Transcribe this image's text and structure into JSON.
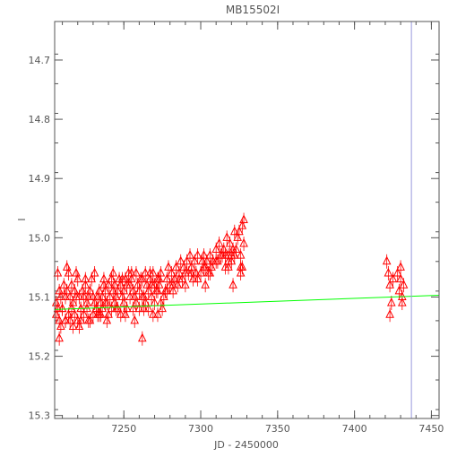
{
  "chart_data": {
    "type": "scatter",
    "title": "MB15502I",
    "xlabel": "JD - 2450000",
    "ylabel": "I",
    "xlim": [
      7205,
      7455
    ],
    "ylim": [
      15.305,
      14.635
    ],
    "y_axis_inverted": true,
    "grid": false,
    "legend": "none",
    "x_ticks": [
      7250,
      7300,
      7350,
      7400,
      7450
    ],
    "x_tick_labels": [
      "7250",
      "7300",
      "7350",
      "7400",
      "7450"
    ],
    "y_ticks": [
      14.7,
      14.8,
      14.9,
      15.0,
      15.1,
      15.2,
      15.3
    ],
    "y_tick_labels": [
      "14.7",
      "14.8",
      "14.9",
      "15.0",
      "15.1",
      "15.2",
      "15.3"
    ],
    "colors": {
      "points": "#ff0000",
      "model": "#00ff00",
      "vline": "#9999dd",
      "axes": "#555555"
    },
    "series": [
      {
        "marker": "triangle-open",
        "x": [
          7206,
          7207,
          7208,
          7209,
          7210,
          7211,
          7212,
          7213,
          7214,
          7215,
          7216,
          7217,
          7218,
          7219,
          7220,
          7221,
          7222,
          7223,
          7224,
          7225,
          7226,
          7227,
          7228,
          7229,
          7230,
          7231,
          7232,
          7233,
          7234,
          7235,
          7236,
          7237,
          7238,
          7239,
          7240,
          7241,
          7242,
          7243,
          7244,
          7245,
          7246,
          7247,
          7248,
          7249,
          7250,
          7251,
          7252,
          7253,
          7254,
          7255,
          7256,
          7257,
          7258,
          7259,
          7260,
          7262,
          7263,
          7264,
          7265,
          7266,
          7267,
          7268,
          7269,
          7270,
          7271,
          7272,
          7273,
          7274,
          7276,
          7277,
          7278,
          7279,
          7280,
          7281,
          7282,
          7283,
          7284,
          7285,
          7286,
          7287,
          7288,
          7289,
          7290,
          7291,
          7292,
          7293,
          7294,
          7295,
          7296,
          7297,
          7298,
          7300,
          7301,
          7302,
          7303,
          7304,
          7305,
          7306,
          7307,
          7308,
          7310,
          7311,
          7312,
          7313,
          7315,
          7316,
          7317,
          7318,
          7319,
          7320,
          7321,
          7322,
          7323,
          7324,
          7325,
          7326,
          7327,
          7328,
          7206,
          7208,
          7210,
          7212,
          7214,
          7216,
          7218,
          7220,
          7222,
          7224,
          7226,
          7228,
          7230,
          7232,
          7234,
          7236,
          7238,
          7240,
          7242,
          7244,
          7246,
          7248,
          7250,
          7252,
          7254,
          7256,
          7258,
          7260,
          7262,
          7264,
          7266,
          7268,
          7270,
          7272,
          7274,
          7278,
          7282,
          7286,
          7290,
          7294,
          7298,
          7302,
          7306,
          7310,
          7314,
          7318,
          7322,
          7326,
          7207,
          7213,
          7219,
          7225,
          7231,
          7237,
          7243,
          7249,
          7255,
          7261,
          7267,
          7273,
          7209,
          7215,
          7221,
          7227,
          7233,
          7239,
          7245,
          7251,
          7257,
          7263,
          7269,
          7275,
          7421,
          7422,
          7423,
          7424,
          7425,
          7428,
          7429,
          7430,
          7431,
          7432
        ],
        "y": [
          15.11,
          15.12,
          15.09,
          15.1,
          15.12,
          15.08,
          15.1,
          15.09,
          15.06,
          15.1,
          15.08,
          15.11,
          15.09,
          15.1,
          15.07,
          15.1,
          15.12,
          15.09,
          15.1,
          15.08,
          15.11,
          15.1,
          15.09,
          15.07,
          15.1,
          15.11,
          15.12,
          15.1,
          15.09,
          15.11,
          15.1,
          15.08,
          15.09,
          15.11,
          15.08,
          15.1,
          15.07,
          15.09,
          15.08,
          15.1,
          15.09,
          15.07,
          15.08,
          15.1,
          15.09,
          15.07,
          15.08,
          15.06,
          15.08,
          15.07,
          15.09,
          15.1,
          15.06,
          15.08,
          15.09,
          15.07,
          15.1,
          15.06,
          15.08,
          15.09,
          15.07,
          15.08,
          15.06,
          15.08,
          15.09,
          15.07,
          15.08,
          15.06,
          15.1,
          15.09,
          15.07,
          15.05,
          15.08,
          15.06,
          15.09,
          15.07,
          15.05,
          15.08,
          15.06,
          15.04,
          15.07,
          15.05,
          15.06,
          15.04,
          15.06,
          15.03,
          15.05,
          15.07,
          15.04,
          15.06,
          15.03,
          15.06,
          15.04,
          15.03,
          15.05,
          15.04,
          15.06,
          15.03,
          15.05,
          15.04,
          15.02,
          15.04,
          15.01,
          15.03,
          15.02,
          15.05,
          15.0,
          15.03,
          15.01,
          15.04,
          15.02,
          14.99,
          15.02,
          15.0,
          14.99,
          15.03,
          14.98,
          15.01,
          15.13,
          15.14,
          15.12,
          15.14,
          15.13,
          15.12,
          15.13,
          15.14,
          15.12,
          15.13,
          15.12,
          15.14,
          15.13,
          15.12,
          15.13,
          15.12,
          15.11,
          15.13,
          15.12,
          15.11,
          15.12,
          15.13,
          15.11,
          15.12,
          15.1,
          15.12,
          15.11,
          15.12,
          15.1,
          15.11,
          15.12,
          15.1,
          15.11,
          15.09,
          15.11,
          15.09,
          15.08,
          15.07,
          15.08,
          15.06,
          15.07,
          15.05,
          15.06,
          15.04,
          15.03,
          15.04,
          15.03,
          15.05,
          15.06,
          15.05,
          15.06,
          15.07,
          15.06,
          15.07,
          15.06,
          15.07,
          15.06,
          15.07,
          15.06,
          15.07,
          15.15,
          15.14,
          15.15,
          15.14,
          15.13,
          15.14,
          15.12,
          15.13,
          15.14,
          15.12,
          15.13,
          15.12,
          15.04,
          15.06,
          15.08,
          15.11,
          15.07,
          15.06,
          15.09,
          15.07,
          15.1,
          15.08
        ]
      },
      {
        "marker": "triangle-open",
        "x": [
          7208,
          7212,
          7217,
          7222,
          7235,
          7262,
          7272,
          7303,
          7316,
          7318,
          7320,
          7321,
          7326,
          7327,
          7328,
          7423,
          7430,
          7431
        ],
        "y": [
          15.17,
          15.14,
          15.15,
          15.14,
          15.13,
          15.17,
          15.13,
          15.08,
          15.03,
          15.05,
          15.03,
          15.08,
          15.06,
          15.05,
          14.97,
          15.13,
          15.05,
          15.11
        ]
      }
    ],
    "model_line": {
      "x": [
        7205,
        7455
      ],
      "y": [
        15.121,
        15.097
      ]
    },
    "vertical_line_x": 7437
  }
}
